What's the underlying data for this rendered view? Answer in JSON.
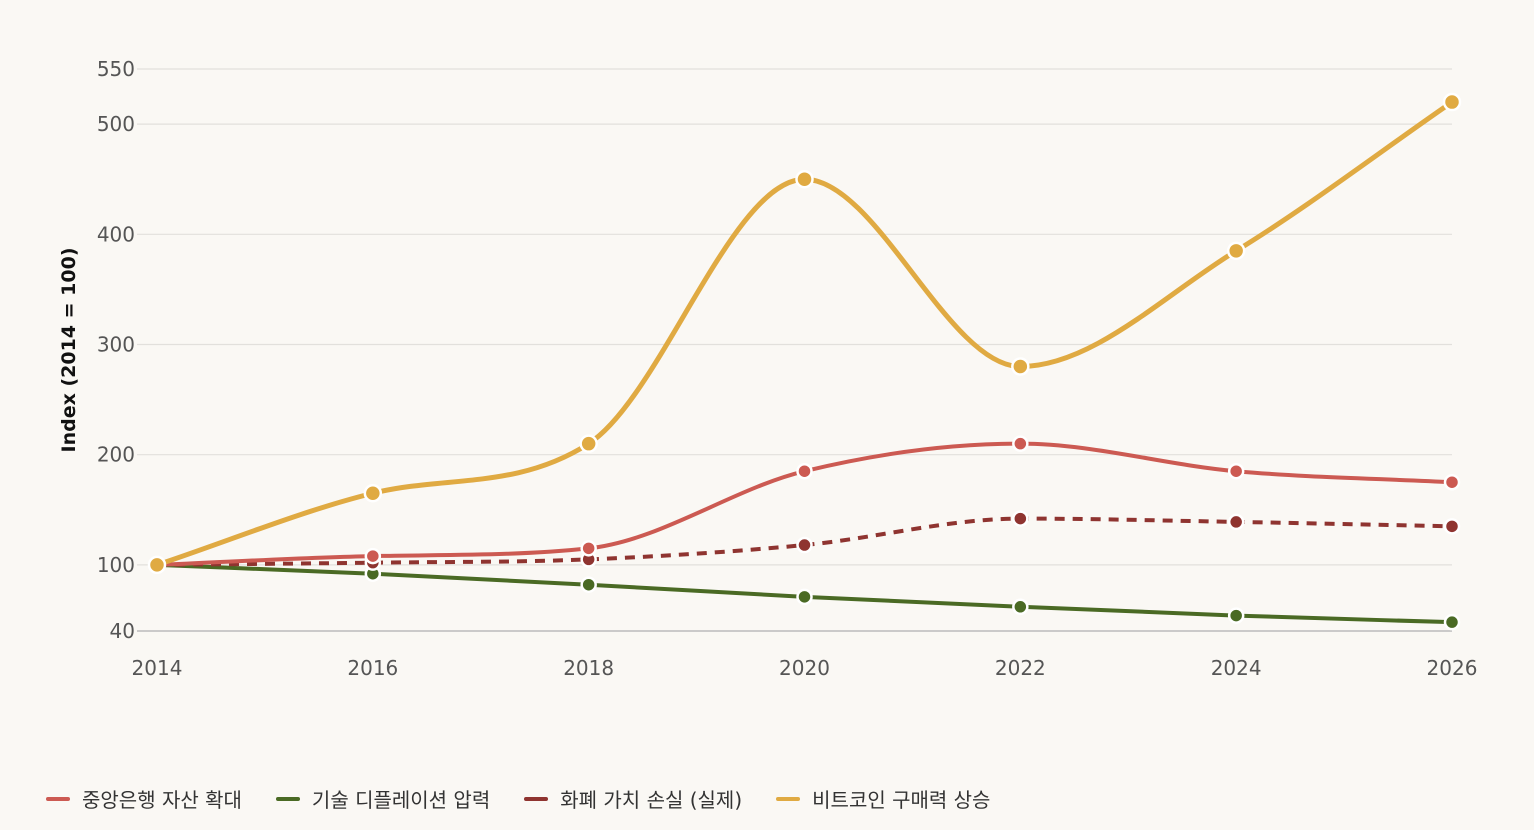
{
  "chart_data": {
    "type": "line",
    "title": "",
    "xlabel": "",
    "ylabel": "Index (2014 = 100)",
    "x": [
      2014,
      2016,
      2018,
      2020,
      2022,
      2024,
      2026
    ],
    "x_tick_labels": [
      "2014",
      "2016",
      "2018",
      "2020",
      "2022",
      "2024",
      "2026"
    ],
    "y_ticks": [
      40,
      100,
      200,
      300,
      400,
      500,
      550
    ],
    "y_tick_labels": [
      "40",
      "100",
      "200",
      "300",
      "400",
      "500",
      "550"
    ],
    "ylim": [
      40,
      550
    ],
    "grid": true,
    "legend_position": "bottom",
    "series": [
      {
        "name": "중앙은행 자산 확대",
        "color": "#cc5a52",
        "dashed": false,
        "values": [
          100,
          108,
          115,
          185,
          210,
          185,
          175
        ]
      },
      {
        "name": "기술 디플레이션 압력",
        "color": "#4a6a24",
        "dashed": false,
        "values": [
          100,
          92,
          82,
          71,
          62,
          54,
          48
        ]
      },
      {
        "name": "화폐 가치 손실 (실제)",
        "color": "#8f3430",
        "dashed": true,
        "values": [
          100,
          102,
          105,
          118,
          142,
          139,
          135
        ]
      },
      {
        "name": "비트코인 구매력 상승",
        "color": "#e0aa42",
        "dashed": false,
        "values": [
          100,
          165,
          210,
          450,
          280,
          385,
          520
        ]
      }
    ]
  }
}
